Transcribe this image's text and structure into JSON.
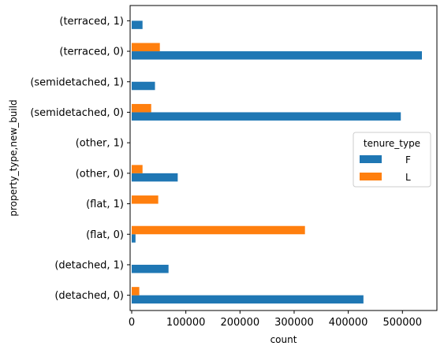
{
  "chart_data": {
    "type": "bar",
    "orientation": "horizontal",
    "title": "",
    "xlabel": "count",
    "ylabel": "property_type,new_build",
    "xlim": [
      0,
      560000
    ],
    "x_ticks": [
      0,
      100000,
      200000,
      300000,
      400000,
      500000
    ],
    "x_tick_labels": [
      "0",
      "100000",
      "200000",
      "300000",
      "400000",
      "500000"
    ],
    "categories": [
      "(detached, 0)",
      "(detached, 1)",
      "(flat, 0)",
      "(flat, 1)",
      "(other, 0)",
      "(other, 1)",
      "(semidetached, 0)",
      "(semidetached, 1)",
      "(terraced, 0)",
      "(terraced, 1)"
    ],
    "series": [
      {
        "name": "F",
        "color": "#1f77b4",
        "values": [
          428000,
          68000,
          7000,
          0,
          85000,
          0,
          497000,
          43000,
          536000,
          20000
        ]
      },
      {
        "name": "L",
        "color": "#ff7f0e",
        "values": [
          14000,
          0,
          320000,
          49000,
          20000,
          0,
          36000,
          0,
          52000,
          0
        ]
      }
    ],
    "legend": {
      "title": "tenure_type",
      "placement": "center-right"
    },
    "grid": false
  }
}
